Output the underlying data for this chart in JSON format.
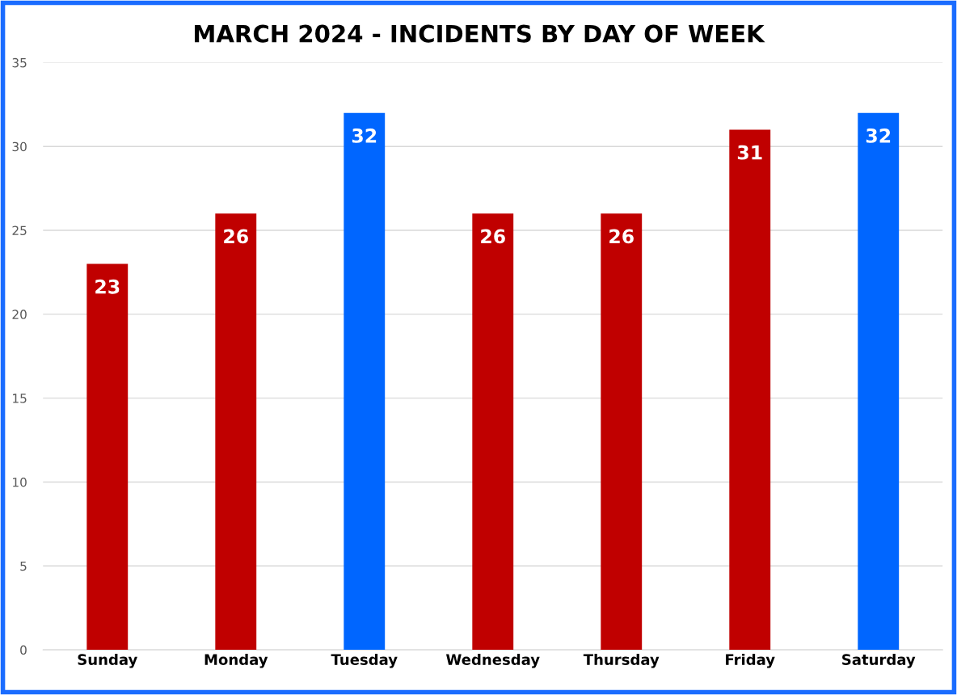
{
  "chart_data": {
    "type": "bar",
    "title": "MARCH 2024 - INCIDENTS BY DAY OF WEEK",
    "categories": [
      "Sunday",
      "Monday",
      "Tuesday",
      "Wednesday",
      "Thursday",
      "Friday",
      "Saturday"
    ],
    "values": [
      23,
      26,
      32,
      26,
      26,
      31,
      32
    ],
    "colors": [
      "#c00000",
      "#c00000",
      "#0066ff",
      "#c00000",
      "#c00000",
      "#c00000",
      "#0066ff"
    ],
    "ylim": [
      0,
      35
    ],
    "yticks": [
      0,
      5,
      10,
      15,
      20,
      25,
      30,
      35
    ],
    "grid": "y",
    "data_labels": true,
    "legend": false
  }
}
